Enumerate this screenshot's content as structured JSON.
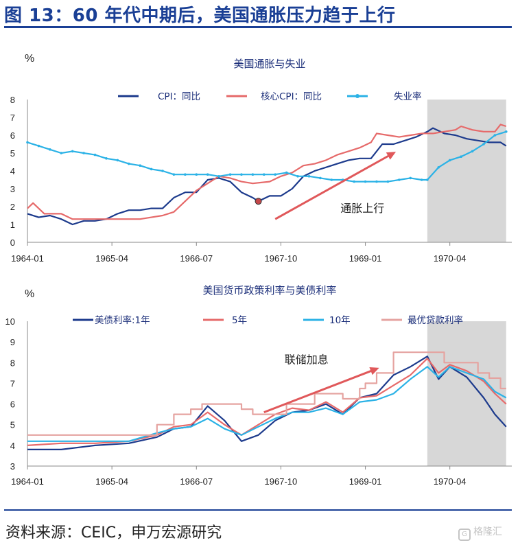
{
  "figure_title": "图 13：60 年代中期后，美国通胀压力趋于上行",
  "source": "资料来源：CEIC，申万宏源研究",
  "watermark": "格隆汇",
  "colors": {
    "navy": "#1c3a8c",
    "red": "#e66a6a",
    "sky": "#2bb2e6",
    "pink": "#e5a3a0",
    "shade": "#d7d7d7",
    "arrow": "#e0585a",
    "title_blue": "#1a3f95"
  },
  "chart_data": [
    {
      "type": "line",
      "title": "美国通胀与失业",
      "unit": "%",
      "ylim": [
        0,
        8
      ],
      "yticks": [
        0,
        1,
        2,
        3,
        4,
        5,
        6,
        7,
        8
      ],
      "xlim": [
        "1964-01",
        "1971-03"
      ],
      "xticks": [
        "1964-01",
        "1965-04",
        "1966-07",
        "1967-10",
        "1969-01",
        "1970-04"
      ],
      "legend_position": "top",
      "grid": false,
      "shaded_period": [
        "1969-12",
        "1971-02"
      ],
      "annotation": {
        "text": "通胀上行",
        "arrow_from": [
          "1967-09",
          1.3
        ],
        "arrow_to": [
          "1969-06",
          5.0
        ]
      },
      "marker": {
        "x": "1967-06",
        "y": 2.3
      },
      "series": [
        {
          "name": "CPI：同比",
          "color": "navy",
          "points": [
            [
              "1964-01",
              1.6
            ],
            [
              "1964-03",
              1.4
            ],
            [
              "1964-05",
              1.5
            ],
            [
              "1964-07",
              1.3
            ],
            [
              "1964-09",
              1.0
            ],
            [
              "1964-11",
              1.2
            ],
            [
              "1965-01",
              1.2
            ],
            [
              "1965-03",
              1.3
            ],
            [
              "1965-05",
              1.6
            ],
            [
              "1965-07",
              1.8
            ],
            [
              "1965-09",
              1.8
            ],
            [
              "1965-11",
              1.9
            ],
            [
              "1966-01",
              1.9
            ],
            [
              "1966-03",
              2.5
            ],
            [
              "1966-05",
              2.8
            ],
            [
              "1966-07",
              2.8
            ],
            [
              "1966-09",
              3.5
            ],
            [
              "1966-11",
              3.6
            ],
            [
              "1967-01",
              3.4
            ],
            [
              "1967-03",
              2.8
            ],
            [
              "1967-05",
              2.5
            ],
            [
              "1967-06",
              2.3
            ],
            [
              "1967-08",
              2.6
            ],
            [
              "1967-10",
              2.6
            ],
            [
              "1967-12",
              3.0
            ],
            [
              "1968-02",
              3.7
            ],
            [
              "1968-04",
              4.0
            ],
            [
              "1968-06",
              4.2
            ],
            [
              "1968-08",
              4.4
            ],
            [
              "1968-10",
              4.6
            ],
            [
              "1968-12",
              4.7
            ],
            [
              "1969-02",
              4.7
            ],
            [
              "1969-04",
              5.5
            ],
            [
              "1969-06",
              5.5
            ],
            [
              "1969-08",
              5.7
            ],
            [
              "1969-10",
              5.9
            ],
            [
              "1969-12",
              6.2
            ],
            [
              "1970-01",
              6.4
            ],
            [
              "1970-03",
              6.1
            ],
            [
              "1970-05",
              6.0
            ],
            [
              "1970-07",
              5.8
            ],
            [
              "1970-09",
              5.7
            ],
            [
              "1970-11",
              5.6
            ],
            [
              "1971-01",
              5.6
            ],
            [
              "1971-02",
              5.4
            ]
          ]
        },
        {
          "name": "核心CPI：同比",
          "color": "red",
          "points": [
            [
              "1964-01",
              1.9
            ],
            [
              "1964-02",
              2.2
            ],
            [
              "1964-04",
              1.6
            ],
            [
              "1964-07",
              1.6
            ],
            [
              "1964-09",
              1.3
            ],
            [
              "1964-12",
              1.3
            ],
            [
              "1965-03",
              1.3
            ],
            [
              "1965-05",
              1.3
            ],
            [
              "1965-07",
              1.3
            ],
            [
              "1965-09",
              1.3
            ],
            [
              "1965-11",
              1.4
            ],
            [
              "1966-01",
              1.5
            ],
            [
              "1966-03",
              1.7
            ],
            [
              "1966-05",
              2.3
            ],
            [
              "1966-07",
              2.9
            ],
            [
              "1966-09",
              3.3
            ],
            [
              "1966-11",
              3.7
            ],
            [
              "1967-01",
              3.6
            ],
            [
              "1967-03",
              3.4
            ],
            [
              "1967-05",
              3.3
            ],
            [
              "1967-08",
              3.4
            ],
            [
              "1967-10",
              3.7
            ],
            [
              "1967-12",
              3.9
            ],
            [
              "1968-02",
              4.3
            ],
            [
              "1968-04",
              4.4
            ],
            [
              "1968-06",
              4.6
            ],
            [
              "1968-08",
              4.9
            ],
            [
              "1968-10",
              5.1
            ],
            [
              "1968-12",
              5.3
            ],
            [
              "1969-02",
              5.6
            ],
            [
              "1969-03",
              6.1
            ],
            [
              "1969-05",
              6.0
            ],
            [
              "1969-07",
              5.9
            ],
            [
              "1969-09",
              6.0
            ],
            [
              "1969-11",
              6.1
            ],
            [
              "1970-01",
              6.1
            ],
            [
              "1970-03",
              6.2
            ],
            [
              "1970-05",
              6.3
            ],
            [
              "1970-06",
              6.5
            ],
            [
              "1970-08",
              6.3
            ],
            [
              "1970-10",
              6.2
            ],
            [
              "1970-12",
              6.2
            ],
            [
              "1971-01",
              6.6
            ],
            [
              "1971-02",
              6.5
            ]
          ]
        },
        {
          "name": "失业率",
          "color": "sky",
          "points": [
            [
              "1964-01",
              5.6
            ],
            [
              "1964-03",
              5.4
            ],
            [
              "1964-05",
              5.2
            ],
            [
              "1964-07",
              5.0
            ],
            [
              "1964-09",
              5.1
            ],
            [
              "1964-11",
              5.0
            ],
            [
              "1965-01",
              4.9
            ],
            [
              "1965-03",
              4.7
            ],
            [
              "1965-05",
              4.6
            ],
            [
              "1965-07",
              4.4
            ],
            [
              "1965-09",
              4.3
            ],
            [
              "1965-11",
              4.1
            ],
            [
              "1966-01",
              4.0
            ],
            [
              "1966-03",
              3.8
            ],
            [
              "1966-05",
              3.8
            ],
            [
              "1966-07",
              3.8
            ],
            [
              "1966-09",
              3.8
            ],
            [
              "1966-11",
              3.7
            ],
            [
              "1967-01",
              3.8
            ],
            [
              "1967-03",
              3.8
            ],
            [
              "1967-05",
              3.8
            ],
            [
              "1967-07",
              3.8
            ],
            [
              "1967-09",
              3.8
            ],
            [
              "1967-11",
              3.9
            ],
            [
              "1968-01",
              3.7
            ],
            [
              "1968-03",
              3.7
            ],
            [
              "1968-05",
              3.6
            ],
            [
              "1968-07",
              3.5
            ],
            [
              "1968-09",
              3.5
            ],
            [
              "1968-11",
              3.4
            ],
            [
              "1969-01",
              3.4
            ],
            [
              "1969-03",
              3.4
            ],
            [
              "1969-05",
              3.4
            ],
            [
              "1969-07",
              3.5
            ],
            [
              "1969-09",
              3.6
            ],
            [
              "1969-11",
              3.5
            ],
            [
              "1969-12",
              3.5
            ],
            [
              "1970-02",
              4.2
            ],
            [
              "1970-04",
              4.6
            ],
            [
              "1970-06",
              4.8
            ],
            [
              "1970-08",
              5.1
            ],
            [
              "1970-10",
              5.5
            ],
            [
              "1970-12",
              6.0
            ],
            [
              "1971-02",
              6.2
            ]
          ]
        }
      ]
    },
    {
      "type": "line",
      "title": "美国货币政策利率与美债利率",
      "unit": "%",
      "ylim": [
        3,
        10
      ],
      "yticks": [
        3,
        4,
        5,
        6,
        7,
        8,
        9,
        10
      ],
      "xlim": [
        "1964-01",
        "1971-03"
      ],
      "xticks": [
        "1964-01",
        "1965-04",
        "1966-07",
        "1967-10",
        "1969-01",
        "1970-04"
      ],
      "legend_position": "top",
      "grid": false,
      "shaded_period": [
        "1969-12",
        "1971-02"
      ],
      "annotation": {
        "text": "联储加息",
        "arrow_from": [
          "1967-07",
          5.6
        ],
        "arrow_to": [
          "1969-03",
          7.7
        ]
      },
      "series": [
        {
          "name": "美债利率:1年",
          "color": "navy",
          "points": [
            [
              "1964-01",
              3.8
            ],
            [
              "1964-07",
              3.8
            ],
            [
              "1965-01",
              4.0
            ],
            [
              "1965-07",
              4.1
            ],
            [
              "1965-12",
              4.4
            ],
            [
              "1966-03",
              4.8
            ],
            [
              "1966-06",
              4.9
            ],
            [
              "1966-09",
              5.9
            ],
            [
              "1966-12",
              5.2
            ],
            [
              "1967-03",
              4.2
            ],
            [
              "1967-06",
              4.5
            ],
            [
              "1967-09",
              5.2
            ],
            [
              "1967-12",
              5.6
            ],
            [
              "1968-03",
              5.7
            ],
            [
              "1968-06",
              6.0
            ],
            [
              "1968-09",
              5.5
            ],
            [
              "1968-12",
              6.3
            ],
            [
              "1969-03",
              6.5
            ],
            [
              "1969-06",
              7.4
            ],
            [
              "1969-09",
              7.8
            ],
            [
              "1969-12",
              8.3
            ],
            [
              "1970-02",
              7.2
            ],
            [
              "1970-04",
              7.8
            ],
            [
              "1970-07",
              7.3
            ],
            [
              "1970-10",
              6.3
            ],
            [
              "1970-12",
              5.5
            ],
            [
              "1971-02",
              4.9
            ]
          ]
        },
        {
          "name": "5年",
          "color": "red",
          "points": [
            [
              "1964-01",
              4.0
            ],
            [
              "1964-07",
              4.1
            ],
            [
              "1965-01",
              4.1
            ],
            [
              "1965-07",
              4.2
            ],
            [
              "1965-12",
              4.5
            ],
            [
              "1966-03",
              4.9
            ],
            [
              "1966-06",
              5.0
            ],
            [
              "1966-09",
              5.6
            ],
            [
              "1966-12",
              5.0
            ],
            [
              "1967-03",
              4.5
            ],
            [
              "1967-06",
              5.0
            ],
            [
              "1967-09",
              5.5
            ],
            [
              "1967-12",
              5.8
            ],
            [
              "1968-03",
              5.7
            ],
            [
              "1968-06",
              6.1
            ],
            [
              "1968-09",
              5.6
            ],
            [
              "1968-12",
              6.3
            ],
            [
              "1969-03",
              6.4
            ],
            [
              "1969-06",
              6.9
            ],
            [
              "1969-09",
              7.4
            ],
            [
              "1969-12",
              8.2
            ],
            [
              "1970-02",
              7.5
            ],
            [
              "1970-04",
              7.9
            ],
            [
              "1970-07",
              7.6
            ],
            [
              "1970-10",
              7.1
            ],
            [
              "1970-12",
              6.5
            ],
            [
              "1971-02",
              6.0
            ]
          ]
        },
        {
          "name": "10年",
          "color": "sky",
          "points": [
            [
              "1964-01",
              4.2
            ],
            [
              "1964-07",
              4.2
            ],
            [
              "1965-01",
              4.2
            ],
            [
              "1965-07",
              4.2
            ],
            [
              "1965-12",
              4.6
            ],
            [
              "1966-03",
              4.8
            ],
            [
              "1966-06",
              4.9
            ],
            [
              "1966-09",
              5.3
            ],
            [
              "1966-12",
              4.8
            ],
            [
              "1967-03",
              4.5
            ],
            [
              "1967-06",
              4.9
            ],
            [
              "1967-09",
              5.3
            ],
            [
              "1967-12",
              5.6
            ],
            [
              "1968-03",
              5.6
            ],
            [
              "1968-06",
              5.8
            ],
            [
              "1968-09",
              5.5
            ],
            [
              "1968-12",
              6.1
            ],
            [
              "1969-03",
              6.2
            ],
            [
              "1969-06",
              6.5
            ],
            [
              "1969-09",
              7.2
            ],
            [
              "1969-12",
              7.8
            ],
            [
              "1970-02",
              7.3
            ],
            [
              "1970-04",
              7.8
            ],
            [
              "1970-07",
              7.5
            ],
            [
              "1970-10",
              7.2
            ],
            [
              "1970-12",
              6.6
            ],
            [
              "1971-02",
              6.3
            ]
          ]
        },
        {
          "name": "最优贷款利率",
          "color": "pink",
          "step": true,
          "points": [
            [
              "1964-01",
              4.5
            ],
            [
              "1965-12",
              5.0
            ],
            [
              "1966-03",
              5.5
            ],
            [
              "1966-06",
              5.75
            ],
            [
              "1966-08",
              6.0
            ],
            [
              "1967-03",
              5.75
            ],
            [
              "1967-05",
              5.5
            ],
            [
              "1967-11",
              6.0
            ],
            [
              "1968-04",
              6.5
            ],
            [
              "1968-09",
              6.25
            ],
            [
              "1968-12",
              6.75
            ],
            [
              "1969-01",
              7.0
            ],
            [
              "1969-03",
              7.5
            ],
            [
              "1969-06",
              8.5
            ],
            [
              "1970-03",
              8.0
            ],
            [
              "1970-09",
              7.5
            ],
            [
              "1970-11",
              7.25
            ],
            [
              "1971-01",
              6.75
            ]
          ]
        }
      ]
    }
  ]
}
